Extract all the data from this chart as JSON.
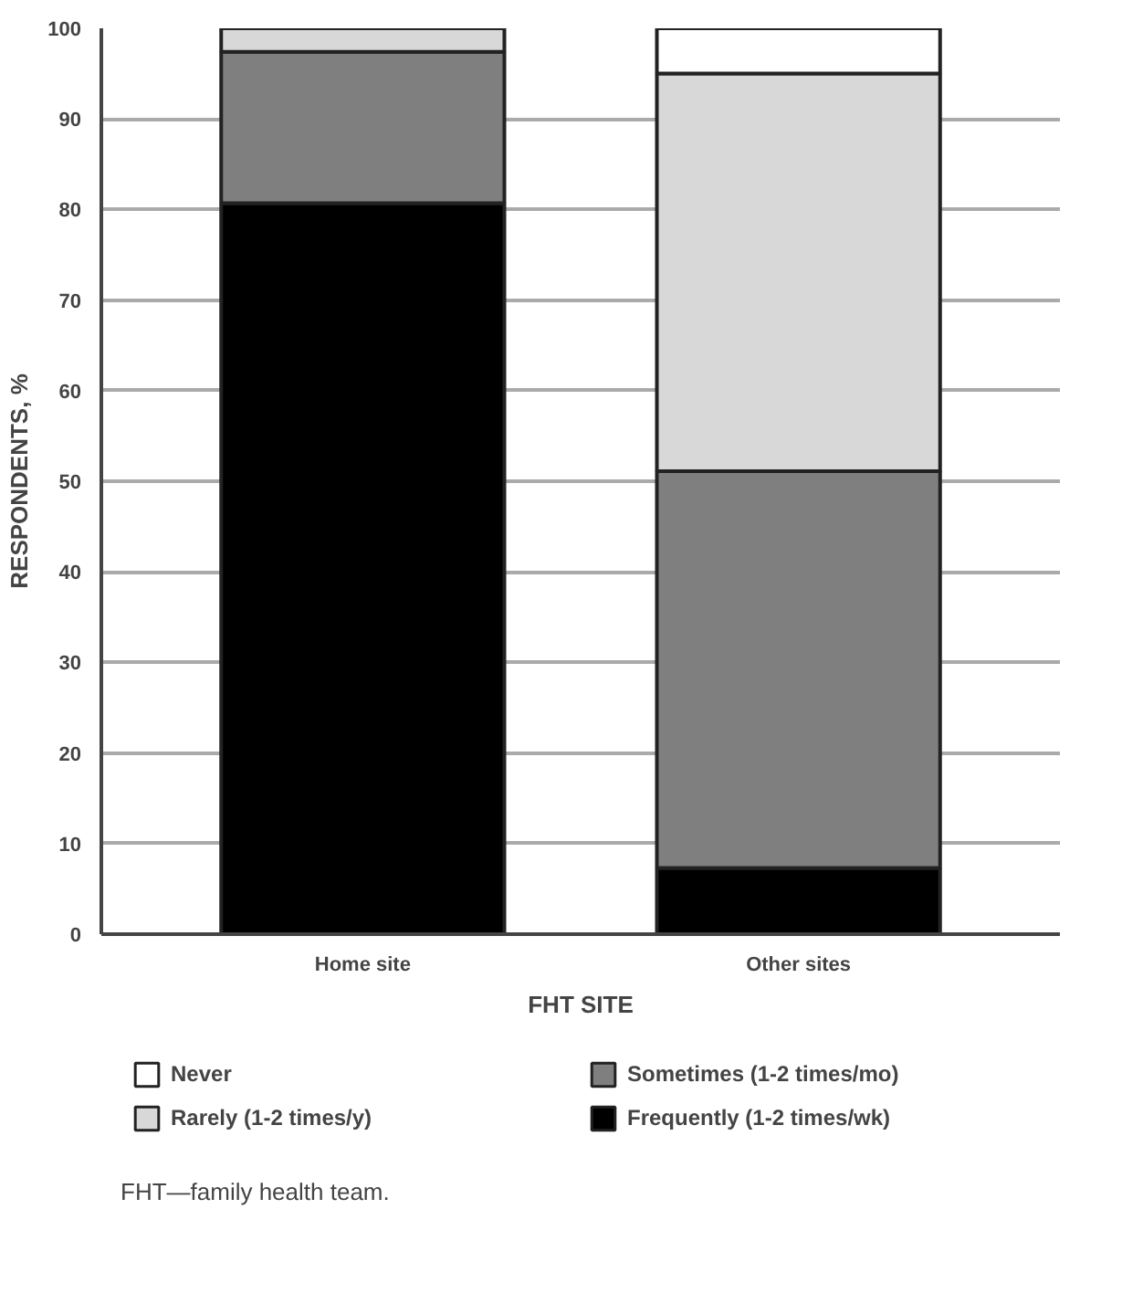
{
  "chart_data": {
    "type": "bar",
    "stacked": true,
    "xlabel": "FHT SITE",
    "ylabel": "RESPONDENTS, %",
    "categories": [
      "Home site",
      "Other sites"
    ],
    "series": [
      {
        "name": "Frequently (1-2 times/wk)",
        "color": "#000000",
        "values": [
          80.7,
          7.3
        ]
      },
      {
        "name": "Sometimes (1-2 times/mo)",
        "color": "#7f7f7f",
        "values": [
          16.7,
          43.8
        ]
      },
      {
        "name": "Rarely (1-2 times/y)",
        "color": "#d8d8d8",
        "values": [
          2.6,
          43.9
        ]
      },
      {
        "name": "Never",
        "color": "#ffffff",
        "values": [
          null,
          5
        ]
      }
    ],
    "ylim": [
      0,
      100
    ],
    "yticks": [
      0,
      10,
      20,
      30,
      40,
      50,
      60,
      70,
      80,
      90,
      100
    ],
    "grid": "y",
    "legend": "bottom",
    "annotations": [
      "FHT—family health team."
    ]
  }
}
